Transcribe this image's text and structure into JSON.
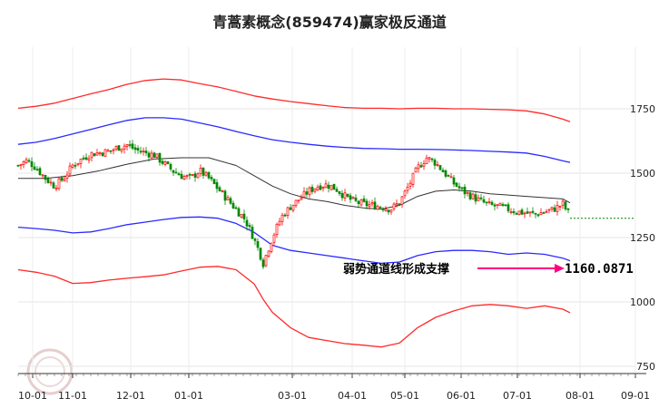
{
  "chart_data": {
    "type": "line",
    "title": "青蒿素概念(859474)赢家极反通道",
    "x_ticks": [
      "10-01",
      "11-01",
      "12-01",
      "01-01",
      "03-01",
      "04-01",
      "05-01",
      "06-01",
      "07-01",
      "08-01",
      "09-01"
    ],
    "y_ticks": [
      750,
      1000,
      1250,
      1500,
      1750
    ],
    "ylim": [
      750,
      1850
    ],
    "annotation": {
      "text": "弱势通道线形成支撑",
      "value": "1160.0871"
    },
    "colors": {
      "outer_band": "#ff2a2a",
      "inner_band": "#2a2aff",
      "mid_line": "#333333",
      "up": "#ff0000",
      "down": "#008800",
      "arrow": "#ff0080",
      "last_price_line": "#008000"
    },
    "series": [
      {
        "key": "upper_outer",
        "x": [
          0,
          20,
          40,
          60,
          80,
          100,
          120,
          140,
          160,
          180,
          200,
          220,
          240,
          260,
          280,
          300,
          320,
          340,
          360,
          380,
          400,
          420,
          440,
          460,
          480,
          500,
          520,
          540,
          560,
          580,
          600,
          608
        ],
        "values": [
          1752,
          1760,
          1772,
          1790,
          1808,
          1825,
          1845,
          1860,
          1866,
          1862,
          1848,
          1835,
          1818,
          1800,
          1788,
          1778,
          1770,
          1762,
          1755,
          1752,
          1752,
          1750,
          1752,
          1752,
          1750,
          1750,
          1748,
          1746,
          1742,
          1730,
          1710,
          1700
        ]
      },
      {
        "key": "upper_inner",
        "x": [
          0,
          20,
          40,
          60,
          80,
          100,
          120,
          140,
          160,
          180,
          200,
          220,
          240,
          260,
          280,
          300,
          320,
          340,
          360,
          380,
          400,
          420,
          440,
          460,
          480,
          500,
          520,
          540,
          560,
          580,
          600,
          608
        ],
        "values": [
          1612,
          1620,
          1635,
          1652,
          1670,
          1688,
          1705,
          1715,
          1715,
          1710,
          1695,
          1680,
          1662,
          1645,
          1630,
          1620,
          1612,
          1605,
          1600,
          1596,
          1595,
          1593,
          1593,
          1592,
          1590,
          1588,
          1585,
          1582,
          1578,
          1565,
          1548,
          1542
        ]
      },
      {
        "key": "middle",
        "x": [
          0,
          30,
          60,
          90,
          120,
          150,
          180,
          210,
          240,
          260,
          280,
          300,
          320,
          340,
          360,
          380,
          400,
          420,
          440,
          460,
          480,
          500,
          520,
          540,
          560,
          580,
          600,
          608
        ],
        "values": [
          1480,
          1480,
          1490,
          1510,
          1535,
          1555,
          1560,
          1560,
          1530,
          1490,
          1450,
          1420,
          1400,
          1390,
          1375,
          1365,
          1360,
          1375,
          1410,
          1430,
          1435,
          1430,
          1420,
          1415,
          1410,
          1405,
          1400,
          1385
        ]
      },
      {
        "key": "lower_inner",
        "x": [
          0,
          20,
          40,
          60,
          80,
          100,
          120,
          140,
          160,
          180,
          200,
          220,
          240,
          260,
          270,
          280,
          300,
          320,
          340,
          360,
          380,
          400,
          420,
          440,
          460,
          480,
          500,
          520,
          540,
          560,
          580,
          600,
          608
        ],
        "values": [
          1290,
          1285,
          1278,
          1268,
          1272,
          1285,
          1300,
          1310,
          1320,
          1328,
          1330,
          1325,
          1305,
          1270,
          1245,
          1220,
          1200,
          1190,
          1180,
          1170,
          1160,
          1150,
          1155,
          1180,
          1195,
          1200,
          1200,
          1195,
          1185,
          1190,
          1185,
          1170,
          1160
        ]
      },
      {
        "key": "lower_outer",
        "x": [
          0,
          20,
          40,
          60,
          80,
          100,
          120,
          140,
          160,
          180,
          200,
          220,
          240,
          260,
          270,
          280,
          300,
          320,
          340,
          360,
          380,
          400,
          420,
          440,
          460,
          480,
          500,
          520,
          540,
          560,
          580,
          600,
          608
        ],
        "values": [
          1125,
          1115,
          1100,
          1072,
          1075,
          1085,
          1092,
          1098,
          1105,
          1120,
          1135,
          1138,
          1125,
          1070,
          1010,
          960,
          900,
          862,
          850,
          838,
          832,
          825,
          840,
          900,
          940,
          965,
          985,
          990,
          985,
          975,
          985,
          972,
          958
        ]
      },
      {
        "key": "close",
        "x": [
          0,
          10,
          20,
          30,
          40,
          50,
          60,
          70,
          80,
          90,
          100,
          110,
          120,
          130,
          140,
          150,
          160,
          170,
          180,
          190,
          200,
          210,
          220,
          230,
          240,
          250,
          258,
          265,
          270,
          280,
          290,
          300,
          310,
          320,
          330,
          340,
          350,
          360,
          370,
          380,
          390,
          400,
          410,
          420,
          430,
          440,
          450,
          460,
          470,
          480,
          490,
          500,
          510,
          520,
          530,
          540,
          550,
          560,
          570,
          580,
          590,
          600,
          605,
          608
        ],
        "values": [
          1530,
          1550,
          1520,
          1480,
          1450,
          1480,
          1530,
          1555,
          1575,
          1580,
          1585,
          1600,
          1610,
          1590,
          1580,
          1570,
          1540,
          1510,
          1490,
          1480,
          1510,
          1480,
          1440,
          1400,
          1360,
          1320,
          1260,
          1200,
          1150,
          1250,
          1330,
          1370,
          1400,
          1430,
          1450,
          1455,
          1440,
          1410,
          1390,
          1380,
          1375,
          1370,
          1360,
          1385,
          1450,
          1520,
          1560,
          1540,
          1500,
          1460,
          1430,
          1410,
          1390,
          1375,
          1370,
          1360,
          1350,
          1345,
          1340,
          1350,
          1360,
          1380,
          1350,
          1340
        ]
      }
    ]
  }
}
